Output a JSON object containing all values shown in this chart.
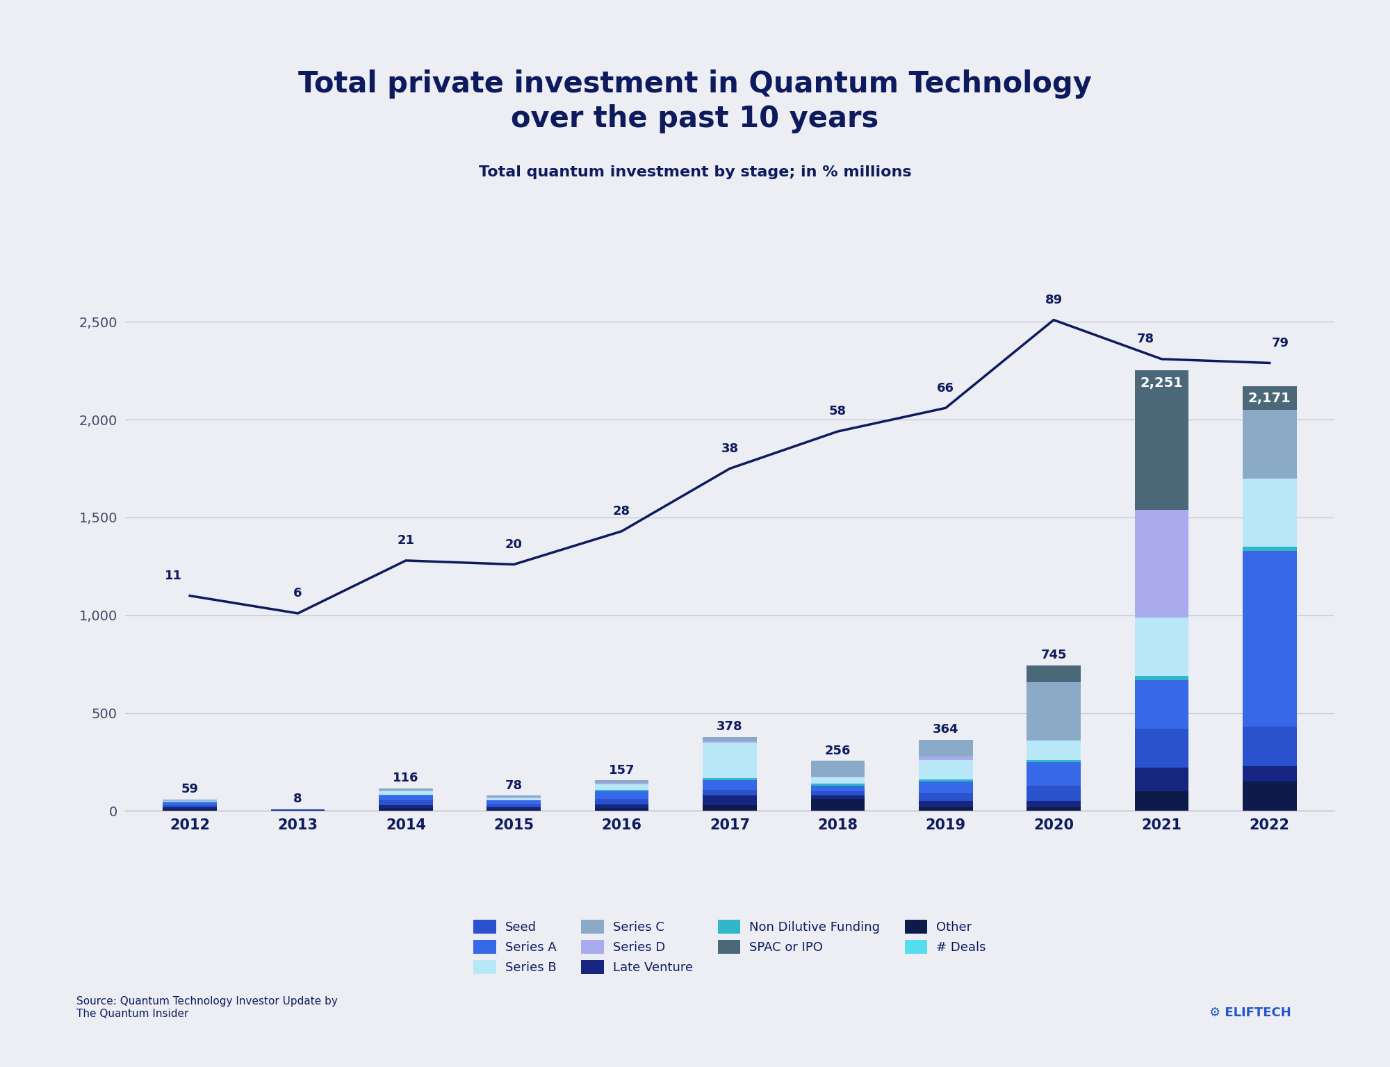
{
  "title": "Total private investment in Quantum Technology\nover the past 10 years",
  "subtitle": "Total quantum investment by stage; in % millions",
  "years": [
    2012,
    2013,
    2014,
    2015,
    2016,
    2017,
    2018,
    2019,
    2020,
    2021,
    2022
  ],
  "bar_totals": [
    59,
    8,
    116,
    78,
    157,
    378,
    256,
    364,
    745,
    2251,
    2171
  ],
  "bar_total_inside": [
    false,
    false,
    false,
    false,
    false,
    false,
    false,
    false,
    false,
    true,
    true
  ],
  "line_values": [
    1100,
    1010,
    1280,
    1260,
    1430,
    1750,
    1940,
    2060,
    2510,
    2310,
    2290
  ],
  "line_labels": [
    11,
    6,
    21,
    20,
    28,
    38,
    58,
    66,
    89,
    78,
    79
  ],
  "stacked_data": {
    "Other": [
      8,
      2,
      12,
      8,
      12,
      30,
      60,
      20,
      20,
      100,
      150
    ],
    "Late Venture": [
      10,
      3,
      18,
      12,
      20,
      48,
      20,
      30,
      30,
      120,
      80
    ],
    "Seed": [
      12,
      2,
      25,
      15,
      30,
      30,
      20,
      40,
      80,
      200,
      200
    ],
    "Series A": [
      15,
      1,
      25,
      18,
      40,
      50,
      30,
      60,
      120,
      250,
      900
    ],
    "Non Dilutive Funding": [
      2,
      0,
      4,
      3,
      5,
      10,
      10,
      10,
      10,
      20,
      20
    ],
    "Series B": [
      5,
      0,
      15,
      10,
      30,
      180,
      30,
      100,
      100,
      300,
      350
    ],
    "Series D": [
      2,
      0,
      5,
      5,
      5,
      10,
      5,
      20,
      0,
      550,
      0
    ],
    "Series C": [
      5,
      0,
      12,
      7,
      15,
      20,
      81,
      84,
      300,
      0,
      350
    ],
    "SPAC or IPO": [
      0,
      0,
      0,
      0,
      0,
      0,
      0,
      0,
      85,
      711,
      121
    ]
  },
  "colors": {
    "Other": "#0D1B4B",
    "Late Venture": "#152580",
    "Seed": "#2952CC",
    "Series A": "#3668E8",
    "Non Dilutive Funding": "#30B8C8",
    "Series B": "#B8E8F8",
    "Series D": "#AAAAEE",
    "Series C": "#8BAAC8",
    "SPAC or IPO": "#4A6878"
  },
  "background_color": "#EDEEF4",
  "title_color": "#0D1B5E",
  "subtitle_color": "#0D1B5E",
  "line_color": "#0D1B5E",
  "axis_label_color": "#444466",
  "grid_color": "#BBBBCC",
  "bar_total_label_color": "#0D1B5E",
  "line_label_color": "#0D1B5E",
  "source_text": "Source: Quantum Technology Investor Update by\nThe Quantum Insider",
  "brand_text": "⚙ ELIFTECH",
  "yticks": [
    0,
    500,
    1000,
    1500,
    2000,
    2500
  ],
  "ylim": [
    0,
    3000
  ]
}
